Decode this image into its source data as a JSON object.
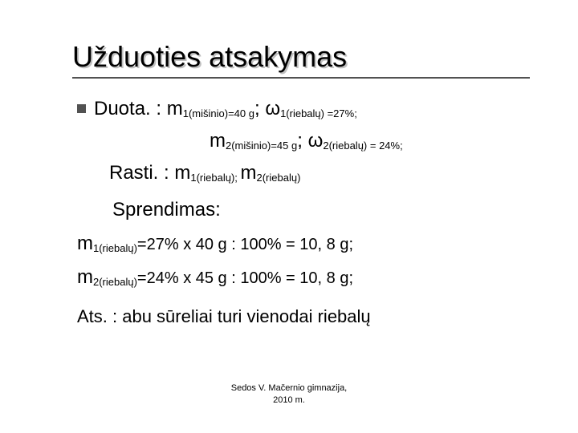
{
  "title": "Užduoties atsakymas",
  "lines": {
    "duota_label": "Duota. : ",
    "m1_big": "m",
    "m1_sub": "1(mišinio)",
    "m1_val": "=40 g",
    "sep": "; ",
    "w1_big": "ω",
    "w1_sub": "1(riebalų) ",
    "w1_val": "=27%;",
    "m2_big": "m",
    "m2_sub": "2(mišinio)",
    "m2_val": "=45 g",
    "w2_big": "ω",
    "w2_sub": "2(riebalų) ",
    "w2_val": "= 24%;",
    "rasti_label": "Rasti. : ",
    "r1_big": "m",
    "r1_sub": "1(riebalų); ",
    "r2_big": "m",
    "r2_sub": "2(riebalų)",
    "sprend_label": "Sprendimas:",
    "calc1_big": "m",
    "calc1_sub": "1(riebalų)",
    "calc1_rest": "=27% x 40 g : 100% = 10, 8 g;",
    "calc2_big": "m",
    "calc2_sub": "2(riebalų)",
    "calc2_rest": "=24% x 45 g : 100% = 10, 8 g;",
    "ats": "Ats. : abu sūreliai turi vienodai riebalų"
  },
  "footer": {
    "l1": "Sedos V. Mačernio gimnazija,",
    "l2": "2010 m."
  },
  "colors": {
    "bullet": "#525252",
    "underline": "#525252",
    "text": "#000000",
    "shadow": "#c0c0c0",
    "bg": "#ffffff"
  }
}
